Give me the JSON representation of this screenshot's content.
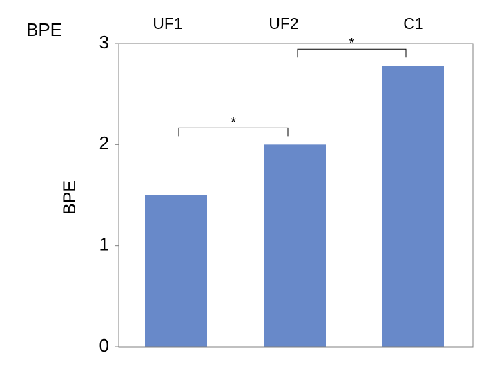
{
  "chart_data": {
    "type": "bar",
    "title": "BPE",
    "categories": [
      "UF1",
      "UF2",
      "C1"
    ],
    "values": [
      1.5,
      2.0,
      2.78
    ],
    "ylabel": "BPE",
    "xlabel": "",
    "ylim": [
      0,
      3
    ],
    "yticks": [
      "0",
      "1",
      "2",
      "3"
    ],
    "grid": false,
    "legend": "none",
    "bar_color": "#6889c9",
    "significance": [
      {
        "from": "UF1",
        "to": "UF2",
        "label": "*"
      },
      {
        "from": "UF2",
        "to": "C1",
        "label": "*"
      }
    ]
  }
}
